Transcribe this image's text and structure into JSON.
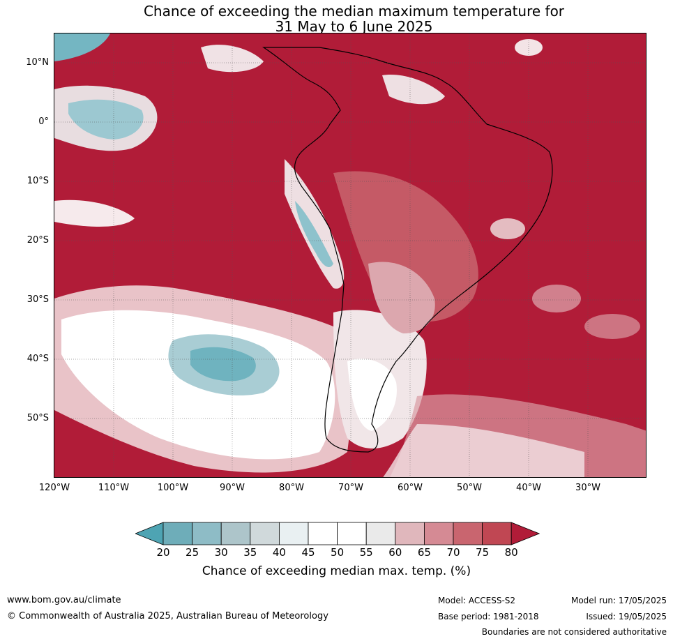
{
  "title": {
    "line1": "Chance of exceeding the median maximum temperature for",
    "line2": "31 May to 6 June 2025"
  },
  "lat_labels": [
    "10°N",
    "0°",
    "10°S",
    "20°S",
    "30°S",
    "40°S",
    "50°S"
  ],
  "lon_labels": [
    "120°W",
    "110°W",
    "100°W",
    "90°W",
    "80°W",
    "70°W",
    "60°W",
    "50°W",
    "40°W",
    "30°W"
  ],
  "colorbar": {
    "ticks": [
      "20",
      "25",
      "30",
      "35",
      "40",
      "45",
      "50",
      "55",
      "60",
      "65",
      "70",
      "75",
      "80"
    ],
    "colors": [
      "#4ea4b3",
      "#6eadb9",
      "#8ebcc6",
      "#adc5ca",
      "#d0d9db",
      "#e9f0f2",
      "#ffffff",
      "#ffffff",
      "#eaeaea",
      "#e0b7bc",
      "#d58a94",
      "#c9656f",
      "#c04753",
      "#b11c38"
    ],
    "label": "Chance of exceeding median max. temp. (%)"
  },
  "footer": {
    "website": "www.bom.gov.au/climate",
    "copyright": "© Commonwealth of Australia 2025, Australian Bureau of Meteorology",
    "model": "Model: ACCESS-S2",
    "base_period": "Base period: 1981-2018",
    "model_run": "Model run: 17/05/2025",
    "issued": "Issued: 19/05/2025",
    "disclaimer": "Boundaries are not considered authoritative"
  }
}
